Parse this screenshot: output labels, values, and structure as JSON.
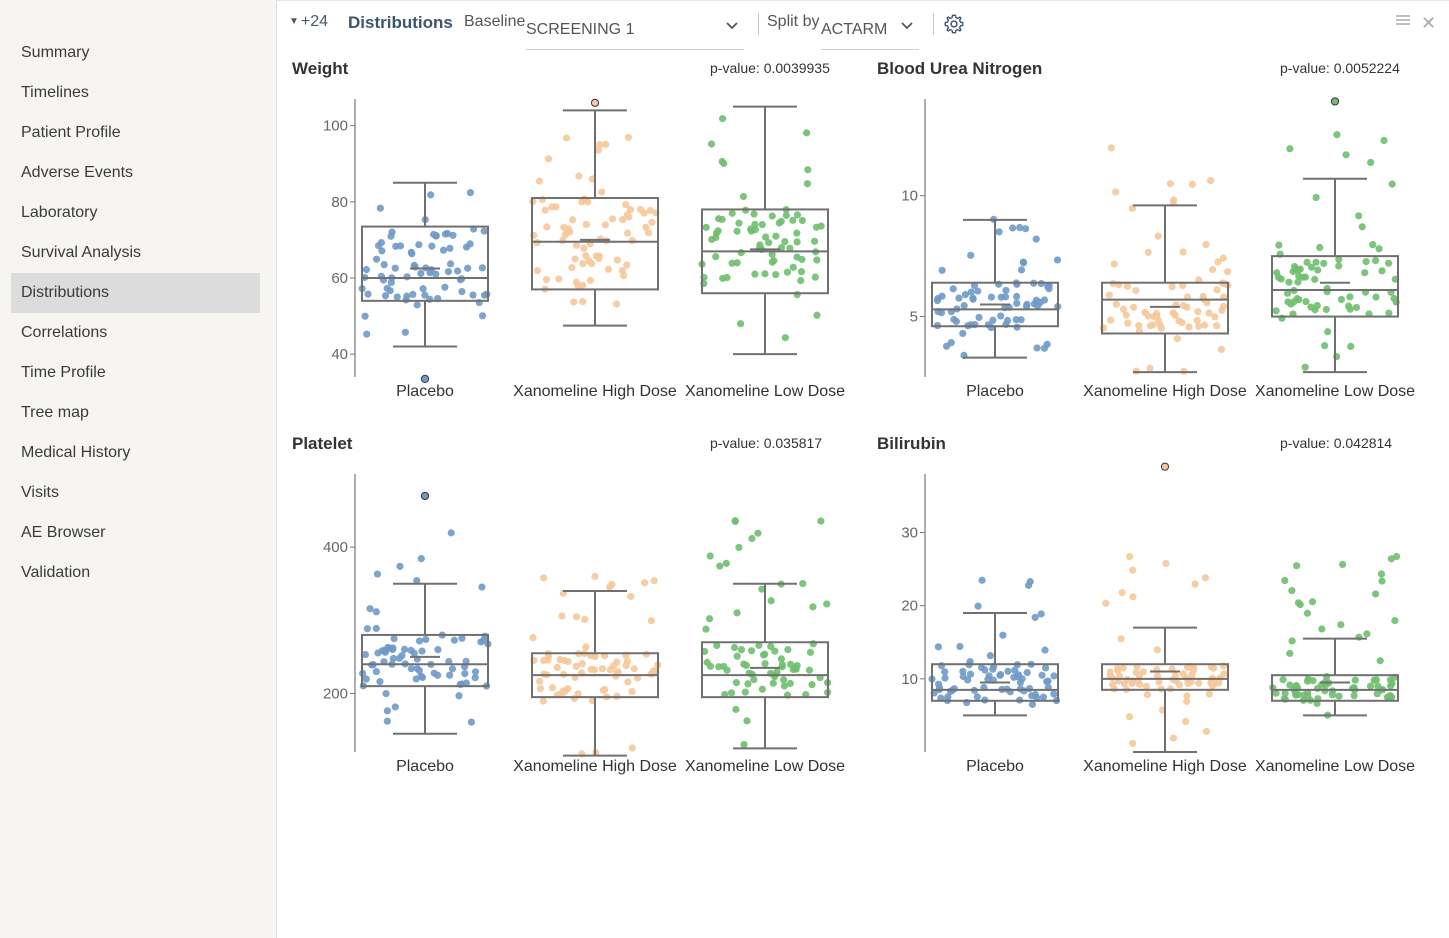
{
  "sidebar": {
    "items": [
      {
        "label": "Summary",
        "name": "summary"
      },
      {
        "label": "Timelines",
        "name": "timelines"
      },
      {
        "label": "Patient Profile",
        "name": "patient-profile"
      },
      {
        "label": "Adverse Events",
        "name": "adverse-events"
      },
      {
        "label": "Laboratory",
        "name": "laboratory"
      },
      {
        "label": "Survival Analysis",
        "name": "survival-analysis"
      },
      {
        "label": "Distributions",
        "name": "distributions",
        "active": true
      },
      {
        "label": "Correlations",
        "name": "correlations"
      },
      {
        "label": "Time Profile",
        "name": "time-profile"
      },
      {
        "label": "Tree map",
        "name": "tree-map"
      },
      {
        "label": "Medical History",
        "name": "medical-history"
      },
      {
        "label": "Visits",
        "name": "visits"
      },
      {
        "label": "AE Browser",
        "name": "ae-browser"
      },
      {
        "label": "Validation",
        "name": "validation"
      }
    ]
  },
  "toolbar": {
    "collapse_label": "+24",
    "title": "Distributions",
    "baseline_label": "Baseline",
    "baseline_value": "SCREENING 1",
    "split_label": "Split by",
    "split_value": "ACTARM",
    "icons": [
      "caret-down-icon",
      "chevron-down-icon",
      "gear-icon",
      "hamburger-icon",
      "close-icon"
    ]
  },
  "colors": {
    "Placebo": "#6f9ac6",
    "Xanomeline High Dose": "#f6c89a",
    "Xanomeline Low Dose": "#6fbf6f",
    "box": "#707070"
  },
  "chart_data": [
    {
      "type": "box",
      "title": "Weight",
      "pvalue_text": "p-value: 0.0039935",
      "categories": [
        "Placebo",
        "Xanomeline High Dose",
        "Xanomeline Low Dose"
      ],
      "yticks": [
        40,
        60,
        80,
        100
      ],
      "ylim": [
        34,
        107
      ],
      "boxes": [
        {
          "min": 42,
          "q1": 54,
          "median": 60,
          "q3": 73.5,
          "max": 85,
          "mean": 62.5
        },
        {
          "min": 47.5,
          "q1": 57,
          "median": 69.5,
          "q3": 81,
          "max": 104,
          "mean": 70
        },
        {
          "min": 40,
          "q1": 56,
          "median": 67,
          "q3": 78,
          "max": 105,
          "mean": 67.5
        }
      ],
      "outliers": [
        [
          33.5
        ],
        [
          106
        ],
        []
      ],
      "point_range": [
        [
          37,
          86
        ],
        [
          48,
          97
        ],
        [
          40,
          103
        ]
      ]
    },
    {
      "type": "box",
      "title": "Blood Urea Nitrogen",
      "pvalue_text": "p-value: 0.0052224",
      "categories": [
        "Placebo",
        "Xanomeline High Dose",
        "Xanomeline Low Dose"
      ],
      "yticks": [
        5,
        10
      ],
      "ylim": [
        2.5,
        14
      ],
      "boxes": [
        {
          "min": 3.3,
          "q1": 4.6,
          "median": 5.3,
          "q3": 6.4,
          "max": 9.0,
          "mean": 5.5
        },
        {
          "min": 2.7,
          "q1": 4.3,
          "median": 5.7,
          "q3": 6.4,
          "max": 9.6,
          "mean": 5.4
        },
        {
          "min": 2.7,
          "q1": 5.0,
          "median": 6.1,
          "q3": 7.5,
          "max": 10.7,
          "mean": 6.4
        }
      ],
      "outliers": [
        [],
        [],
        [
          13.9
        ]
      ],
      "point_range": [
        [
          3.3,
          9.2
        ],
        [
          2.7,
          12.2
        ],
        [
          2.7,
          13.2
        ]
      ]
    },
    {
      "type": "box",
      "title": "Platelet",
      "pvalue_text": "p-value: 0.035817",
      "categories": [
        "Placebo",
        "Xanomeline High Dose",
        "Xanomeline Low Dose"
      ],
      "yticks": [
        200,
        400
      ],
      "ylim": [
        120,
        500
      ],
      "boxes": [
        {
          "min": 145,
          "q1": 210,
          "median": 240,
          "q3": 280,
          "max": 350,
          "mean": 250
        },
        {
          "min": 115,
          "q1": 195,
          "median": 225,
          "q3": 255,
          "max": 340,
          "mean": 225
        },
        {
          "min": 125,
          "q1": 195,
          "median": 225,
          "q3": 270,
          "max": 350,
          "mean": 235
        }
      ],
      "outliers": [
        [
          470
        ],
        [],
        []
      ],
      "point_range": [
        [
          160,
          420
        ],
        [
          115,
          360
        ],
        [
          125,
          450
        ]
      ]
    },
    {
      "type": "box",
      "title": "Bilirubin",
      "pvalue_text": "p-value: 0.042814",
      "categories": [
        "Placebo",
        "Xanomeline High Dose",
        "Xanomeline Low Dose"
      ],
      "yticks": [
        10,
        20,
        30
      ],
      "ylim": [
        0,
        38
      ],
      "boxes": [
        {
          "min": 5,
          "q1": 7,
          "median": 8.5,
          "q3": 12,
          "max": 19,
          "mean": 9.5
        },
        {
          "min": 0,
          "q1": 8.5,
          "median": 10,
          "q3": 12,
          "max": 17,
          "mean": 11
        },
        {
          "min": 5,
          "q1": 7,
          "median": 8.5,
          "q3": 10.5,
          "max": 15.5,
          "mean": 9.5
        }
      ],
      "outliers": [
        [],
        [
          39
        ],
        []
      ],
      "point_range": [
        [
          5,
          26
        ],
        [
          0,
          27
        ],
        [
          5,
          27
        ]
      ]
    }
  ]
}
